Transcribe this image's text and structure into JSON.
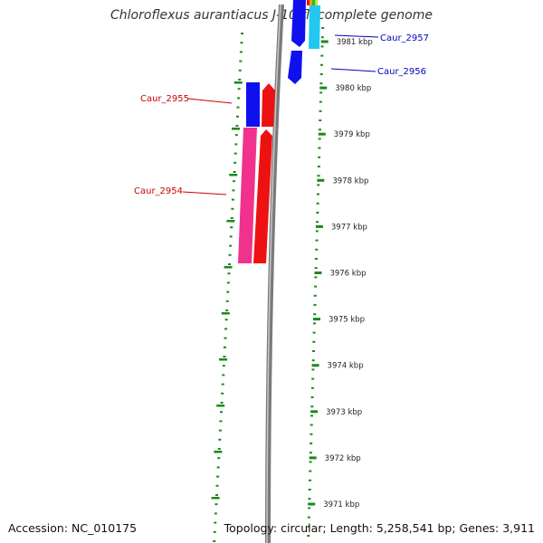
{
  "title": "Chloroflexus aurantiacus J-10-fl, complete genome",
  "accession": "Accession: NC_010175",
  "topology": "Topology: circular; Length: 5,258,541 bp; Genes: 3,911",
  "colors": {
    "backbone": "#7a7a7a",
    "tick": "#1a8a1a",
    "blue": "#1010ee",
    "cyan": "#22c8f0",
    "red": "#ee1111",
    "pink": "#f0328c",
    "label_red": "#cc0000",
    "label_blue": "#0000bb"
  },
  "ticks": [
    {
      "label": "3981 kbp",
      "kbp": 3981
    },
    {
      "label": "3980 kbp",
      "kbp": 3980
    },
    {
      "label": "3979 kbp",
      "kbp": 3979
    },
    {
      "label": "3978 kbp",
      "kbp": 3978
    },
    {
      "label": "3977 kbp",
      "kbp": 3977
    },
    {
      "label": "3976 kbp",
      "kbp": 3976
    },
    {
      "label": "3975 kbp",
      "kbp": 3975
    },
    {
      "label": "3974 kbp",
      "kbp": 3974
    },
    {
      "label": "3973 kbp",
      "kbp": 3973
    },
    {
      "label": "3972 kbp",
      "kbp": 3972
    },
    {
      "label": "3971 kbp",
      "kbp": 3971
    }
  ],
  "gene_labels": [
    {
      "id": "caur-2957",
      "text": "Caur_2957",
      "color": "label_blue"
    },
    {
      "id": "caur-2956",
      "text": "Caur_2956",
      "color": "label_blue"
    },
    {
      "id": "caur-2955",
      "text": "Caur_2955",
      "color": "label_red"
    },
    {
      "id": "caur-2954",
      "text": "Caur_2954",
      "color": "label_red"
    }
  ]
}
